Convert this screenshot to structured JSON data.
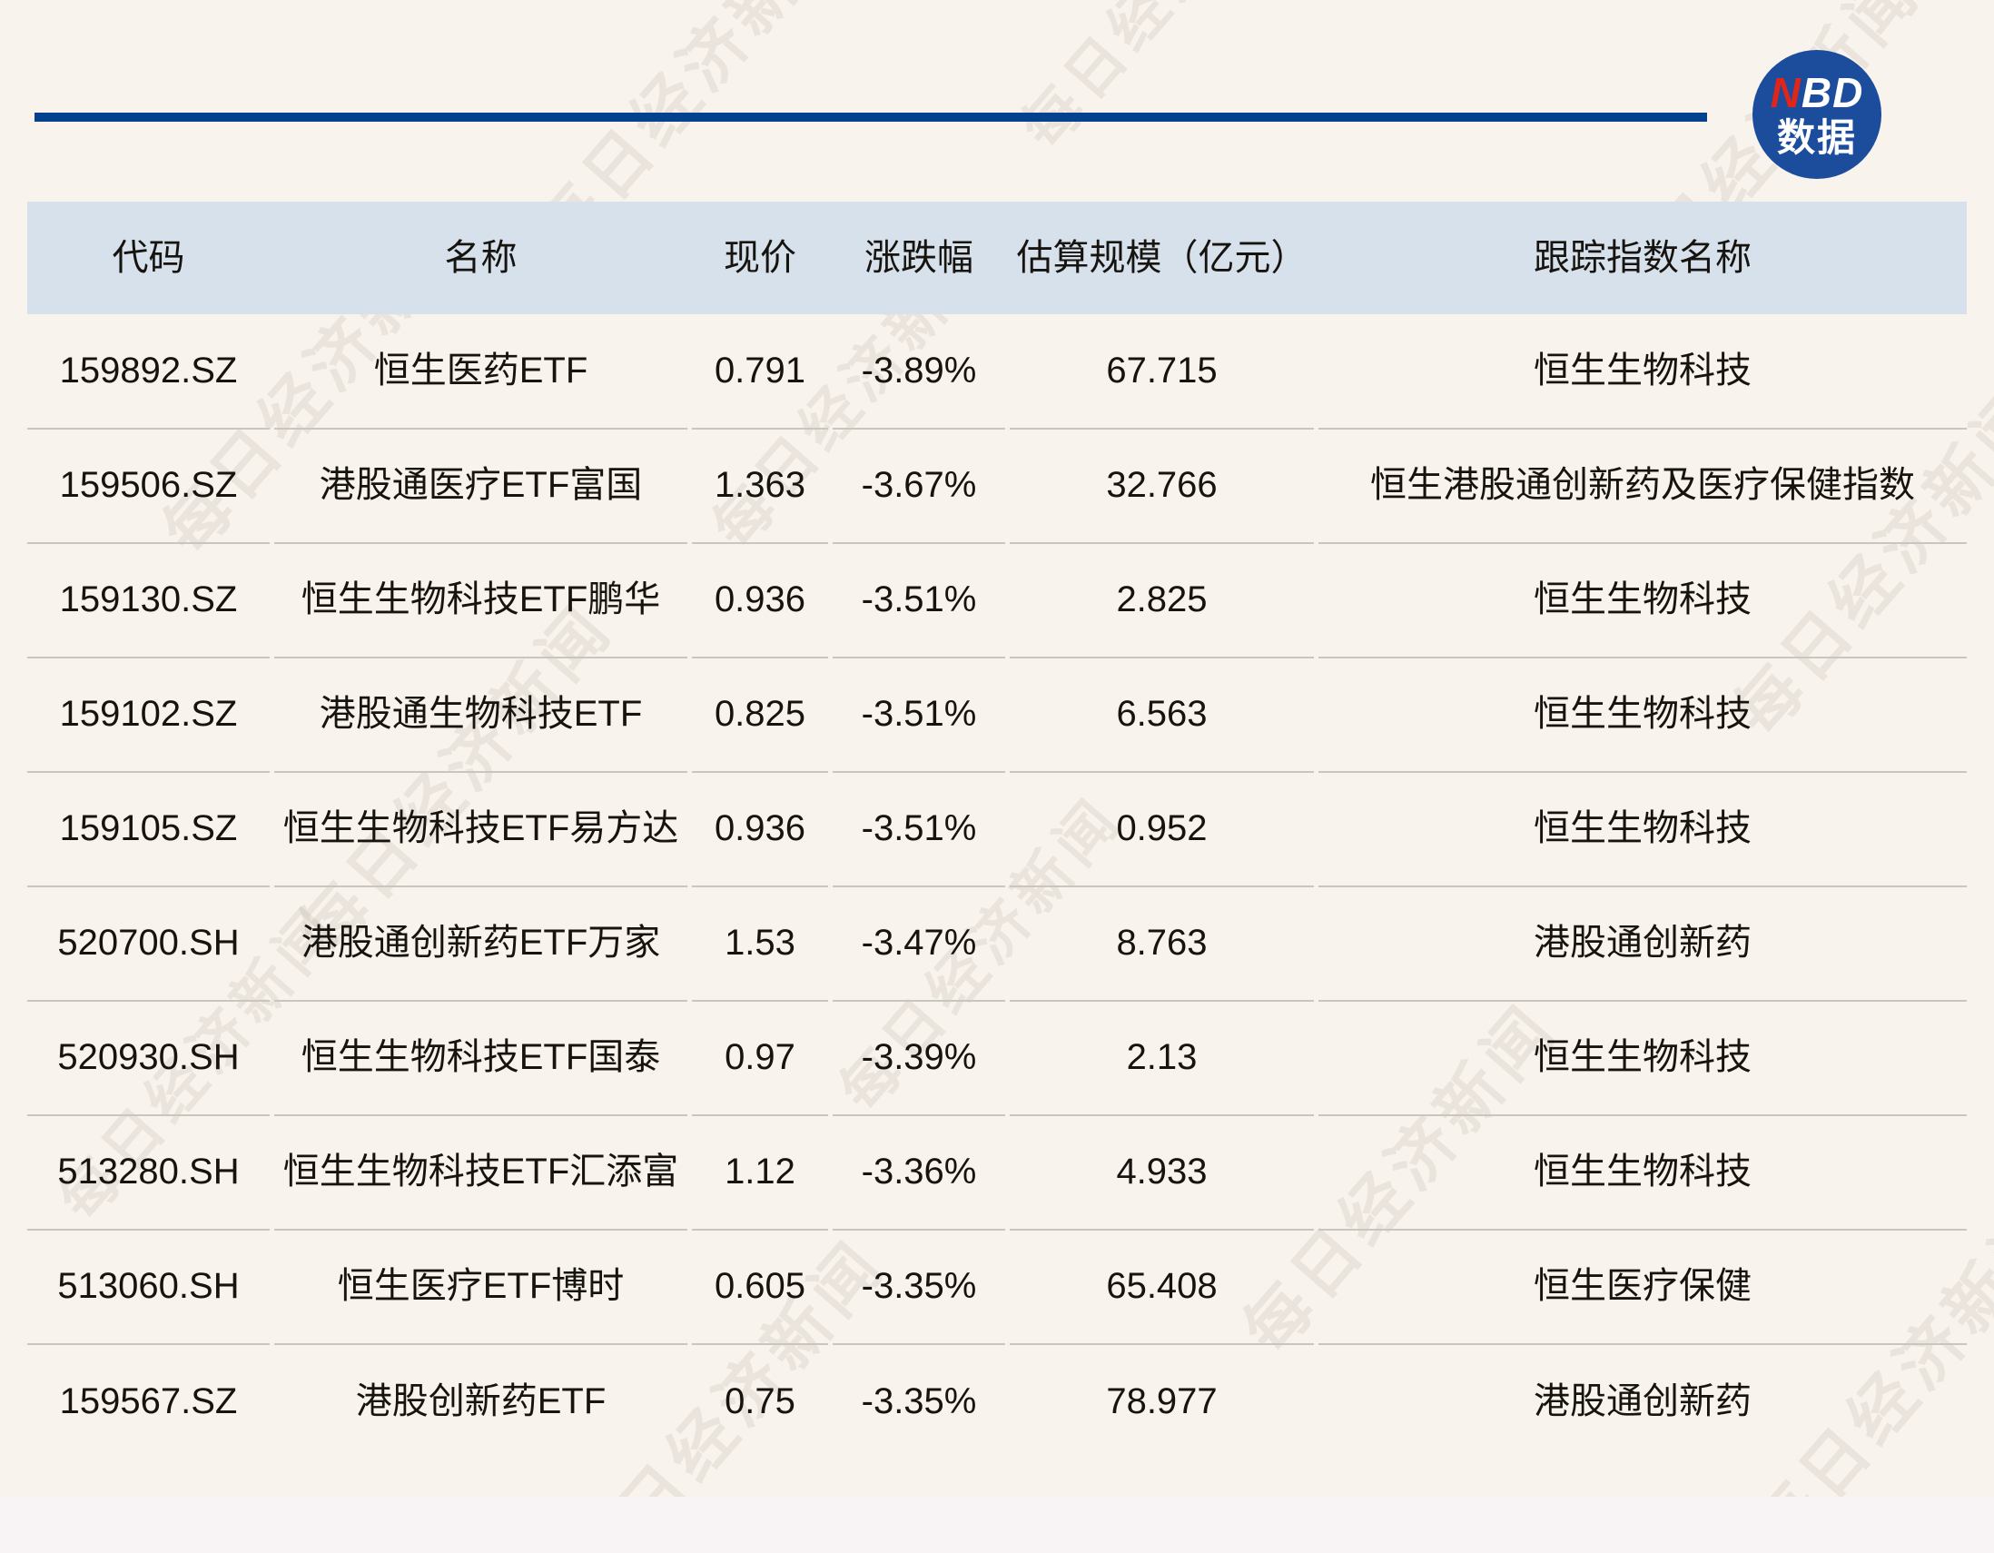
{
  "logo": {
    "brand_red": "N",
    "brand_white": "BD",
    "brand_sub": "数据"
  },
  "watermark": {
    "text": "每日经济新闻"
  },
  "colors": {
    "page_bg": "#f8f3ec",
    "header_bg": "#d6e1ec",
    "top_rule": "#04418f",
    "logo_bg": "#1c4c9c",
    "logo_accent_red": "#e0251b",
    "divider": "#c9c6c0",
    "text": "#17140f"
  },
  "chart_data": {
    "type": "table",
    "columns": [
      "代码",
      "名称",
      "现价",
      "涨跌幅",
      "估算规模（亿元）",
      "跟踪指数名称"
    ],
    "rows": [
      [
        "159892.SZ",
        "恒生医药ETF",
        "0.791",
        "-3.89%",
        "67.715",
        "恒生生物科技"
      ],
      [
        "159506.SZ",
        "港股通医疗ETF富国",
        "1.363",
        "-3.67%",
        "32.766",
        "恒生港股通创新药及医疗保健指数"
      ],
      [
        "159130.SZ",
        "恒生生物科技ETF鹏华",
        "0.936",
        "-3.51%",
        "2.825",
        "恒生生物科技"
      ],
      [
        "159102.SZ",
        "港股通生物科技ETF",
        "0.825",
        "-3.51%",
        "6.563",
        "恒生生物科技"
      ],
      [
        "159105.SZ",
        "恒生生物科技ETF易方达",
        "0.936",
        "-3.51%",
        "0.952",
        "恒生生物科技"
      ],
      [
        "520700.SH",
        "港股通创新药ETF万家",
        "1.53",
        "-3.47%",
        "8.763",
        "港股通创新药"
      ],
      [
        "520930.SH",
        "恒生生物科技ETF国泰",
        "0.97",
        "-3.39%",
        "2.13",
        "恒生生物科技"
      ],
      [
        "513280.SH",
        "恒生生物科技ETF汇添富",
        "1.12",
        "-3.36%",
        "4.933",
        "恒生生物科技"
      ],
      [
        "513060.SH",
        "恒生医疗ETF博时",
        "0.605",
        "-3.35%",
        "65.408",
        "恒生医疗保健"
      ],
      [
        "159567.SZ",
        "港股创新药ETF",
        "0.75",
        "-3.35%",
        "78.977",
        "港股通创新药"
      ]
    ]
  }
}
